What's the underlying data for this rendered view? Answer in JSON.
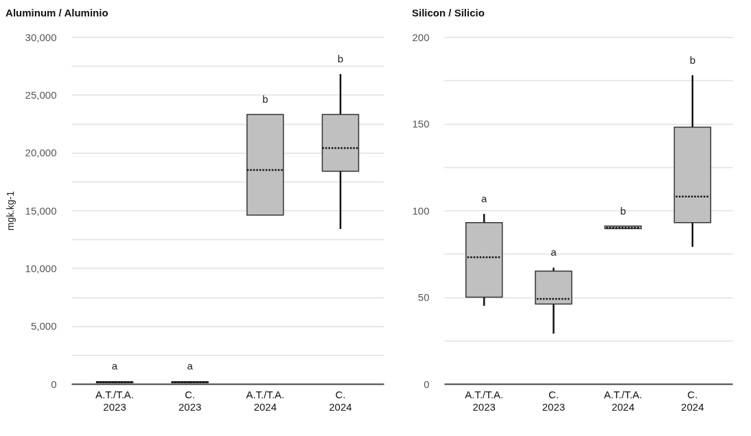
{
  "chart_data": [
    {
      "type": "box",
      "title": "Aluminum / Aluminio",
      "ylabel": "mgk.kg-1",
      "color": "#c0c0c0",
      "categories": [
        "A.T./T.A.\n2023",
        "C.\n2023",
        "A.T./T.A.\n2024",
        "C.\n2024"
      ],
      "boxes": [
        {
          "low": 50,
          "q1": 100,
          "median": 150,
          "q3": 200,
          "high": 250
        },
        {
          "low": 50,
          "q1": 100,
          "median": 150,
          "q3": 200,
          "high": 250
        },
        {
          "low": 14600,
          "q1": 14600,
          "median": 18500,
          "q3": 23300,
          "high": 23300
        },
        {
          "low": 13400,
          "q1": 18400,
          "median": 20400,
          "q3": 23300,
          "high": 26800
        }
      ],
      "ylim": [
        0,
        30000
      ],
      "yticks": [
        {
          "value": 0,
          "label": "0"
        },
        {
          "value": 2500,
          "label": null
        },
        {
          "value": 5000,
          "label": "5,000"
        },
        {
          "value": 7500,
          "label": null
        },
        {
          "value": 10000,
          "label": "10,000"
        },
        {
          "value": 12500,
          "label": null
        },
        {
          "value": 15000,
          "label": "15,000"
        },
        {
          "value": 17500,
          "label": null
        },
        {
          "value": 20000,
          "label": "20,000"
        },
        {
          "value": 22500,
          "label": null
        },
        {
          "value": 25000,
          "label": "25,000"
        },
        {
          "value": 27500,
          "label": null
        },
        {
          "value": 30000,
          "label": "30,000"
        }
      ],
      "grid": "y",
      "annotations": [
        "a",
        "a",
        "b",
        "b"
      ]
    },
    {
      "type": "box",
      "title": "Silicon / Silicio",
      "color": "#c0c0c0",
      "categories": [
        "A.T./T.A.\n2023",
        "C.\n2023",
        "A.T./T.A.\n2024",
        "C.\n2024"
      ],
      "boxes": [
        {
          "low": 45,
          "q1": 50,
          "median": 73,
          "q3": 93,
          "high": 98
        },
        {
          "low": 29,
          "q1": 46,
          "median": 49,
          "q3": 65,
          "high": 67
        },
        {
          "low": 89.5,
          "q1": 89.5,
          "median": 90,
          "q3": 91,
          "high": 91
        },
        {
          "low": 79,
          "q1": 93,
          "median": 108,
          "q3": 148,
          "high": 178
        }
      ],
      "ylim": [
        0,
        200
      ],
      "yticks": [
        0,
        {
          "value": 25,
          "label": null
        },
        50,
        {
          "value": 75,
          "label": null
        },
        100,
        {
          "value": 125,
          "label": null
        },
        150,
        {
          "value": 175,
          "label": null
        },
        200
      ],
      "grid": "y",
      "annotations": [
        "a",
        "a",
        "b",
        "b"
      ]
    }
  ]
}
